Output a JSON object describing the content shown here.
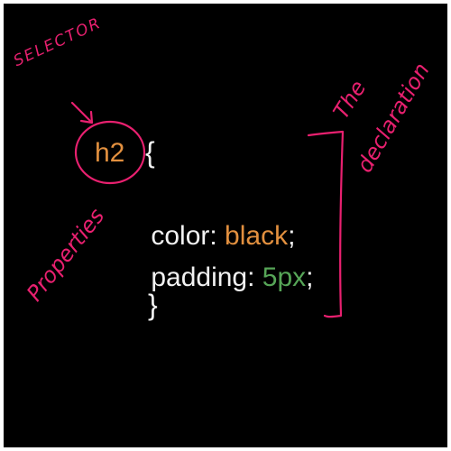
{
  "colors": {
    "background": "#000000",
    "plain": "#f2f2f2",
    "keyword": "#e2903f",
    "number": "#56a557",
    "ink": "#e8206f"
  },
  "code": {
    "selector": "h2",
    "open_brace": "{",
    "line1_property": "color:",
    "line1_value": "black",
    "line1_end": ";",
    "line2_property": "padding:",
    "line2_value": "5px",
    "line2_end": ";",
    "close_brace": "}"
  },
  "annotations": {
    "selector_label": "SELECTOR",
    "properties_label": "Properties",
    "declaration_line1": "The",
    "declaration_line2": "declaration"
  }
}
